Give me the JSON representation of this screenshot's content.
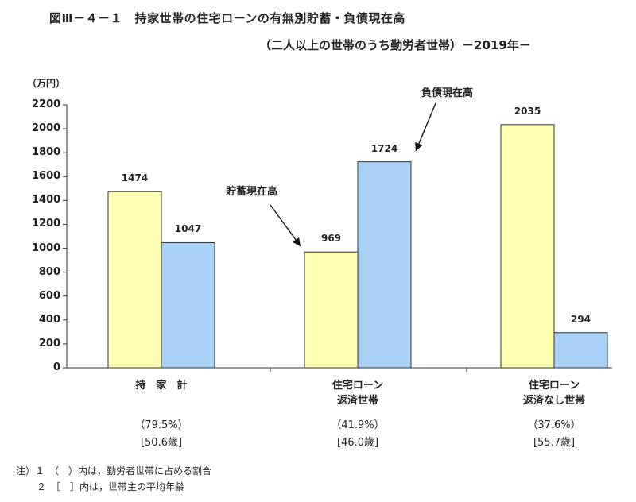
{
  "chart_data": {
    "type": "bar",
    "title": "図Ⅲ－４－１　持家世帯の住宅ローンの有無別貯蓄・負債現在高",
    "subtitle": "（二人以上の世帯のうち勤労者世帯）－2019年－",
    "ylabel": "（万円）",
    "ylim": [
      0,
      2200
    ],
    "yticks": [
      0,
      200,
      400,
      600,
      800,
      1000,
      1200,
      1400,
      1600,
      1800,
      2000,
      2200
    ],
    "categories": [
      {
        "label": "持　家　計",
        "pct": "（79.5%）",
        "age": "[50.6歳]"
      },
      {
        "label": "住宅ローン\n返済世帯",
        "pct": "（41.9%）",
        "age": "[46.0歳]"
      },
      {
        "label": "住宅ローン\n返済なし世帯",
        "pct": "（37.6%）",
        "age": "[55.7歳]"
      }
    ],
    "series": [
      {
        "name": "貯蓄現在高",
        "color": "#ffffb3",
        "values": [
          1474,
          969,
          2035
        ]
      },
      {
        "name": "負債現在高",
        "color": "#a9d0f5",
        "values": [
          1047,
          1724,
          294
        ]
      }
    ],
    "annotations": [
      {
        "text": "貯蓄現在高"
      },
      {
        "text": "負債現在高"
      }
    ],
    "notes": [
      "注）１　（　）内は，勤労者世帯に占める割合",
      "２　［　］内は，世帯主の平均年齢"
    ],
    "grid": false,
    "legend": "none"
  }
}
